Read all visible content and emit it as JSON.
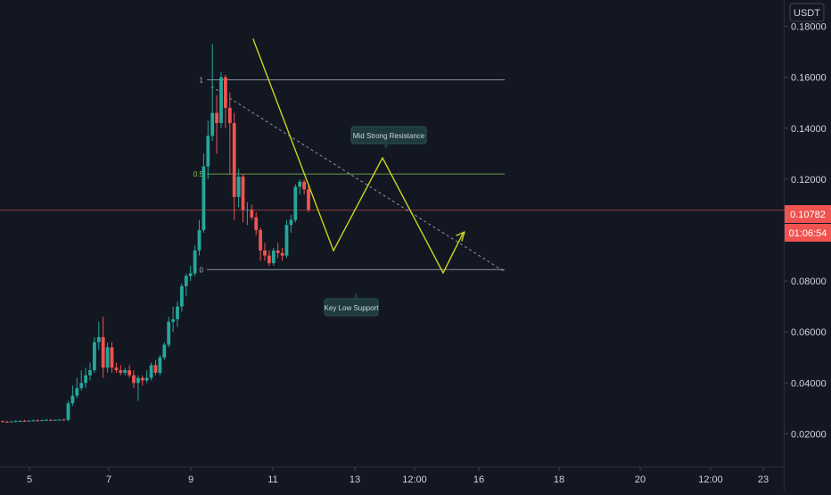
{
  "currency_label": "USDT",
  "colors": {
    "background": "#131722",
    "up": "#26a69a",
    "down": "#ef5350",
    "fib": "#b2b5be",
    "fib_mid": "#8bc34a",
    "pattern": "#c9d41f",
    "price_line": "#ef5350",
    "axis_text": "#d1d4dc"
  },
  "chart_data": {
    "type": "candlestick",
    "title": "",
    "y_axis": {
      "ticks": [
        "0.02000",
        "0.04000",
        "0.06000",
        "0.08000",
        "0.10000",
        "0.12000",
        "0.14000",
        "0.16000",
        "0.18000"
      ],
      "ylim": [
        0.0,
        0.19
      ]
    },
    "x_axis": {
      "ticks": [
        "5",
        "7",
        "9",
        "11",
        "13",
        "12:00",
        "16",
        "18",
        "20",
        "12:00",
        "23"
      ]
    },
    "current_price": "0.10782",
    "countdown": "01:06:54",
    "candles": [
      [
        0.025,
        0.0252,
        0.0245,
        0.0248
      ],
      [
        0.0248,
        0.0251,
        0.0244,
        0.0247
      ],
      [
        0.0247,
        0.025,
        0.0245,
        0.0249
      ],
      [
        0.0249,
        0.0253,
        0.0246,
        0.025
      ],
      [
        0.025,
        0.0254,
        0.0247,
        0.0251
      ],
      [
        0.0251,
        0.0255,
        0.0248,
        0.025
      ],
      [
        0.025,
        0.0253,
        0.0248,
        0.0252
      ],
      [
        0.0252,
        0.0256,
        0.0249,
        0.0253
      ],
      [
        0.0253,
        0.0257,
        0.025,
        0.0252
      ],
      [
        0.0252,
        0.0256,
        0.025,
        0.0254
      ],
      [
        0.0254,
        0.0258,
        0.0251,
        0.0255
      ],
      [
        0.0255,
        0.0258,
        0.0252,
        0.0254
      ],
      [
        0.0254,
        0.0256,
        0.0251,
        0.0255
      ],
      [
        0.0255,
        0.0258,
        0.0253,
        0.0256
      ],
      [
        0.0256,
        0.0259,
        0.0253,
        0.0255
      ],
      [
        0.0255,
        0.033,
        0.025,
        0.032
      ],
      [
        0.032,
        0.039,
        0.031,
        0.035
      ],
      [
        0.035,
        0.042,
        0.034,
        0.038
      ],
      [
        0.038,
        0.045,
        0.037,
        0.04
      ],
      [
        0.04,
        0.046,
        0.038,
        0.043
      ],
      [
        0.043,
        0.048,
        0.041,
        0.045
      ],
      [
        0.045,
        0.058,
        0.044,
        0.056
      ],
      [
        0.056,
        0.064,
        0.053,
        0.058
      ],
      [
        0.058,
        0.066,
        0.042,
        0.046
      ],
      [
        0.046,
        0.056,
        0.044,
        0.054
      ],
      [
        0.054,
        0.056,
        0.044,
        0.046
      ],
      [
        0.046,
        0.048,
        0.044,
        0.045
      ],
      [
        0.045,
        0.047,
        0.043,
        0.044
      ],
      [
        0.044,
        0.046,
        0.043,
        0.045
      ],
      [
        0.045,
        0.047,
        0.042,
        0.043
      ],
      [
        0.043,
        0.045,
        0.038,
        0.04
      ],
      [
        0.04,
        0.043,
        0.033,
        0.042
      ],
      [
        0.042,
        0.043,
        0.039,
        0.041
      ],
      [
        0.041,
        0.045,
        0.04,
        0.042
      ],
      [
        0.042,
        0.048,
        0.041,
        0.047
      ],
      [
        0.047,
        0.049,
        0.043,
        0.044
      ],
      [
        0.044,
        0.051,
        0.043,
        0.05
      ],
      [
        0.05,
        0.056,
        0.049,
        0.055
      ],
      [
        0.055,
        0.066,
        0.054,
        0.064
      ],
      [
        0.064,
        0.07,
        0.06,
        0.065
      ],
      [
        0.065,
        0.072,
        0.062,
        0.07
      ],
      [
        0.07,
        0.079,
        0.068,
        0.078
      ],
      [
        0.078,
        0.083,
        0.074,
        0.082
      ],
      [
        0.082,
        0.086,
        0.08,
        0.083
      ],
      [
        0.083,
        0.094,
        0.082,
        0.092
      ],
      [
        0.092,
        0.104,
        0.09,
        0.1
      ],
      [
        0.1,
        0.13,
        0.099,
        0.125
      ],
      [
        0.125,
        0.143,
        0.12,
        0.137
      ],
      [
        0.137,
        0.173,
        0.135,
        0.146
      ],
      [
        0.146,
        0.153,
        0.13,
        0.142
      ],
      [
        0.142,
        0.162,
        0.14,
        0.16
      ],
      [
        0.16,
        0.161,
        0.14,
        0.148
      ],
      [
        0.148,
        0.154,
        0.122,
        0.142
      ],
      [
        0.142,
        0.146,
        0.104,
        0.113
      ],
      [
        0.113,
        0.124,
        0.109,
        0.121
      ],
      [
        0.121,
        0.122,
        0.103,
        0.108
      ],
      [
        0.108,
        0.111,
        0.102,
        0.108
      ],
      [
        0.108,
        0.11,
        0.104,
        0.105
      ],
      [
        0.105,
        0.107,
        0.098,
        0.1
      ],
      [
        0.1,
        0.101,
        0.088,
        0.092
      ],
      [
        0.092,
        0.095,
        0.088,
        0.09
      ],
      [
        0.09,
        0.092,
        0.086,
        0.087
      ],
      [
        0.087,
        0.093,
        0.086,
        0.092
      ],
      [
        0.092,
        0.095,
        0.089,
        0.091
      ],
      [
        0.091,
        0.093,
        0.088,
        0.09
      ],
      [
        0.09,
        0.104,
        0.089,
        0.102
      ],
      [
        0.102,
        0.106,
        0.099,
        0.104
      ],
      [
        0.104,
        0.118,
        0.103,
        0.117
      ],
      [
        0.117,
        0.12,
        0.114,
        0.119
      ],
      [
        0.119,
        0.12,
        0.114,
        0.116
      ],
      [
        0.116,
        0.118,
        0.107,
        0.108
      ]
    ],
    "fib_levels": [
      {
        "label": "1",
        "price": 0.159
      },
      {
        "label": "0.5",
        "price": 0.122
      },
      {
        "label": "0",
        "price": 0.0845
      }
    ],
    "annotations": [
      {
        "text": "Mid Strong Resistance",
        "price": 0.13
      },
      {
        "text": "Key Low Support",
        "price": 0.086
      }
    ]
  }
}
